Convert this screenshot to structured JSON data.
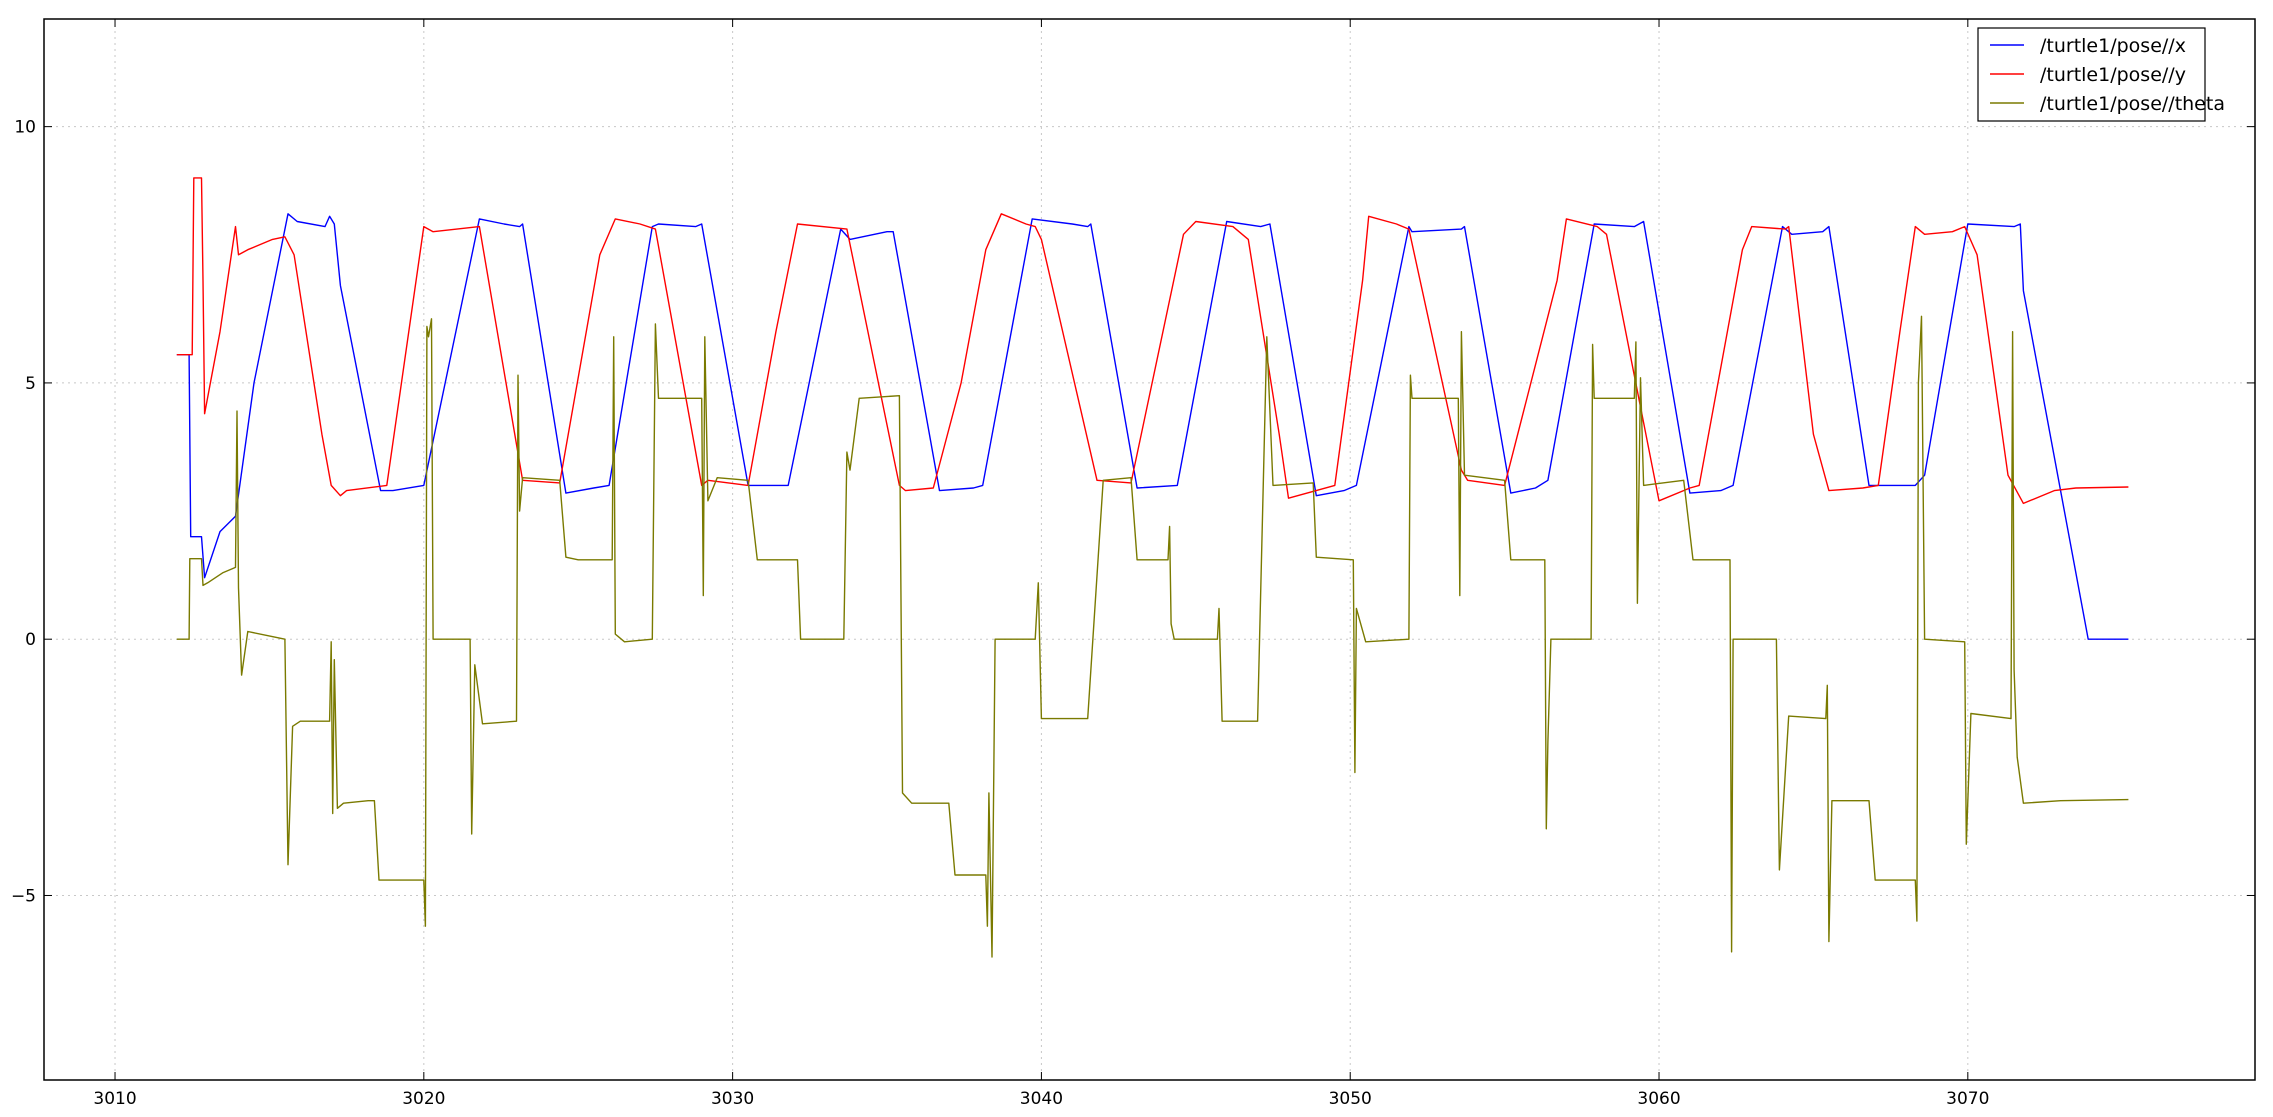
{
  "chart_data": {
    "type": "line",
    "title": "",
    "xlabel": "",
    "ylabel": "",
    "xlim": [
      3007.7,
      3079.3
    ],
    "ylim": [
      -8.6,
      12.1
    ],
    "xticks": [
      3010,
      3020,
      3030,
      3040,
      3050,
      3060,
      3070
    ],
    "yticks": [
      -5,
      0,
      5,
      10
    ],
    "xtick_labels": [
      "3010",
      "3020",
      "3030",
      "3040",
      "3050",
      "3060",
      "3070"
    ],
    "ytick_labels": [
      "−5",
      "0",
      "5",
      "10"
    ],
    "grid": true,
    "legend_position": "top-right",
    "series": [
      {
        "name": "/turtle1/pose//x",
        "color": "#0000ff",
        "points": [
          [
            3012.0,
            5.55
          ],
          [
            3012.4,
            5.55
          ],
          [
            3012.45,
            2.0
          ],
          [
            3012.8,
            2.0
          ],
          [
            3012.9,
            1.2
          ],
          [
            3013.4,
            2.1
          ],
          [
            3013.9,
            2.4
          ],
          [
            3014.5,
            5.0
          ],
          [
            3015.6,
            8.3
          ],
          [
            3015.9,
            8.15
          ],
          [
            3016.8,
            8.05
          ],
          [
            3016.95,
            8.25
          ],
          [
            3017.1,
            8.1
          ],
          [
            3017.3,
            6.9
          ],
          [
            3018.6,
            2.9
          ],
          [
            3019.0,
            2.9
          ],
          [
            3020.0,
            3.0
          ],
          [
            3021.8,
            8.2
          ],
          [
            3022.6,
            8.1
          ],
          [
            3023.1,
            8.05
          ],
          [
            3023.2,
            8.1
          ],
          [
            3024.6,
            2.85
          ],
          [
            3025.5,
            2.95
          ],
          [
            3026.0,
            3.0
          ],
          [
            3027.4,
            8.05
          ],
          [
            3027.6,
            8.1
          ],
          [
            3028.8,
            8.05
          ],
          [
            3029.0,
            8.1
          ],
          [
            3030.5,
            3.0
          ],
          [
            3031.8,
            3.0
          ],
          [
            3033.5,
            8.0
          ],
          [
            3033.8,
            7.8
          ],
          [
            3035.0,
            7.95
          ],
          [
            3035.2,
            7.95
          ],
          [
            3036.7,
            2.9
          ],
          [
            3037.8,
            2.95
          ],
          [
            3038.1,
            3.0
          ],
          [
            3039.7,
            8.2
          ],
          [
            3041.0,
            8.1
          ],
          [
            3041.5,
            8.05
          ],
          [
            3041.6,
            8.1
          ],
          [
            3043.1,
            2.95
          ],
          [
            3044.4,
            3.0
          ],
          [
            3046.0,
            8.15
          ],
          [
            3047.1,
            8.05
          ],
          [
            3047.4,
            8.1
          ],
          [
            3048.9,
            2.8
          ],
          [
            3049.8,
            2.9
          ],
          [
            3050.2,
            3.0
          ],
          [
            3051.9,
            8.05
          ],
          [
            3052.0,
            7.95
          ],
          [
            3053.6,
            8.0
          ],
          [
            3053.7,
            8.05
          ],
          [
            3055.2,
            2.85
          ],
          [
            3056.0,
            2.95
          ],
          [
            3056.4,
            3.1
          ],
          [
            3057.9,
            8.1
          ],
          [
            3059.2,
            8.05
          ],
          [
            3059.5,
            8.15
          ],
          [
            3061.0,
            2.85
          ],
          [
            3062.0,
            2.9
          ],
          [
            3062.4,
            3.0
          ],
          [
            3064.0,
            8.05
          ],
          [
            3064.3,
            7.9
          ],
          [
            3065.3,
            7.95
          ],
          [
            3065.5,
            8.05
          ],
          [
            3066.8,
            3.0
          ],
          [
            3068.3,
            3.0
          ],
          [
            3068.6,
            3.2
          ],
          [
            3070.0,
            8.1
          ],
          [
            3071.5,
            8.05
          ],
          [
            3071.7,
            8.1
          ],
          [
            3071.8,
            6.8
          ],
          [
            3073.9,
            0.0
          ],
          [
            3075.2,
            0.0
          ]
        ]
      },
      {
        "name": "/turtle1/pose//y",
        "color": "#ff0000",
        "points": [
          [
            3012.0,
            5.55
          ],
          [
            3012.5,
            5.55
          ],
          [
            3012.55,
            9.0
          ],
          [
            3012.8,
            9.0
          ],
          [
            3012.85,
            7.0
          ],
          [
            3012.9,
            4.4
          ],
          [
            3013.4,
            6.0
          ],
          [
            3013.9,
            8.05
          ],
          [
            3014.0,
            7.5
          ],
          [
            3014.3,
            7.6
          ],
          [
            3015.1,
            7.8
          ],
          [
            3015.5,
            7.85
          ],
          [
            3015.8,
            7.5
          ],
          [
            3016.7,
            4.0
          ],
          [
            3017.0,
            3.0
          ],
          [
            3017.3,
            2.8
          ],
          [
            3017.5,
            2.9
          ],
          [
            3018.8,
            3.0
          ],
          [
            3020.0,
            8.05
          ],
          [
            3020.3,
            7.95
          ],
          [
            3021.8,
            8.05
          ],
          [
            3023.2,
            3.1
          ],
          [
            3024.4,
            3.05
          ],
          [
            3025.7,
            7.5
          ],
          [
            3026.2,
            8.2
          ],
          [
            3027.0,
            8.1
          ],
          [
            3027.5,
            8.0
          ],
          [
            3029.0,
            3.0
          ],
          [
            3029.2,
            3.1
          ],
          [
            3030.5,
            3.0
          ],
          [
            3031.4,
            6.0
          ],
          [
            3032.1,
            8.1
          ],
          [
            3033.7,
            8.0
          ],
          [
            3035.4,
            3.0
          ],
          [
            3035.6,
            2.9
          ],
          [
            3036.5,
            2.95
          ],
          [
            3037.4,
            5.0
          ],
          [
            3038.2,
            7.6
          ],
          [
            3038.7,
            8.3
          ],
          [
            3039.5,
            8.1
          ],
          [
            3039.8,
            8.05
          ],
          [
            3040.0,
            7.8
          ],
          [
            3041.8,
            3.1
          ],
          [
            3042.9,
            3.05
          ],
          [
            3044.6,
            7.9
          ],
          [
            3045.0,
            8.15
          ],
          [
            3046.2,
            8.05
          ],
          [
            3046.7,
            7.8
          ],
          [
            3047.7,
            4.0
          ],
          [
            3048.0,
            2.75
          ],
          [
            3049.5,
            3.0
          ],
          [
            3050.4,
            7.0
          ],
          [
            3050.6,
            8.25
          ],
          [
            3051.5,
            8.1
          ],
          [
            3051.9,
            8.0
          ],
          [
            3053.6,
            3.3
          ],
          [
            3053.8,
            3.1
          ],
          [
            3055.0,
            3.0
          ],
          [
            3056.7,
            7.0
          ],
          [
            3057.0,
            8.2
          ],
          [
            3058.0,
            8.05
          ],
          [
            3058.3,
            7.9
          ],
          [
            3060.0,
            2.7
          ],
          [
            3061.0,
            2.95
          ],
          [
            3061.3,
            3.0
          ],
          [
            3062.7,
            7.6
          ],
          [
            3063.0,
            8.05
          ],
          [
            3064.1,
            8.0
          ],
          [
            3064.2,
            8.05
          ],
          [
            3065.0,
            4.0
          ],
          [
            3065.5,
            2.9
          ],
          [
            3066.6,
            2.95
          ],
          [
            3067.1,
            3.0
          ],
          [
            3067.8,
            6.0
          ],
          [
            3068.3,
            8.05
          ],
          [
            3068.6,
            7.9
          ],
          [
            3069.5,
            7.95
          ],
          [
            3069.9,
            8.05
          ],
          [
            3070.3,
            7.5
          ],
          [
            3071.3,
            3.2
          ],
          [
            3071.8,
            2.65
          ],
          [
            3072.8,
            2.9
          ],
          [
            3073.5,
            2.95
          ],
          [
            3075.2,
            2.97
          ]
        ]
      },
      {
        "name": "/turtle1/pose//theta",
        "color": "#7a7a00",
        "points": [
          [
            3012.0,
            0.0
          ],
          [
            3012.4,
            0.0
          ],
          [
            3012.42,
            1.57
          ],
          [
            3012.8,
            1.57
          ],
          [
            3012.85,
            1.05
          ],
          [
            3013.0,
            1.1
          ],
          [
            3013.5,
            1.3
          ],
          [
            3013.9,
            1.4
          ],
          [
            3013.95,
            4.45
          ],
          [
            3014.0,
            1.0
          ],
          [
            3014.1,
            -0.7
          ],
          [
            3014.3,
            0.15
          ],
          [
            3015.5,
            0.0
          ],
          [
            3015.6,
            -4.4
          ],
          [
            3015.75,
            -1.7
          ],
          [
            3016.0,
            -1.6
          ],
          [
            3016.95,
            -1.6
          ],
          [
            3017.0,
            -0.05
          ],
          [
            3017.05,
            -3.4
          ],
          [
            3017.1,
            -0.4
          ],
          [
            3017.2,
            -3.3
          ],
          [
            3017.4,
            -3.2
          ],
          [
            3018.2,
            -3.15
          ],
          [
            3018.4,
            -3.15
          ],
          [
            3018.55,
            -4.7
          ],
          [
            3019.0,
            -4.7
          ],
          [
            3020.0,
            -4.7
          ],
          [
            3020.05,
            -5.6
          ],
          [
            3020.1,
            6.1
          ],
          [
            3020.15,
            5.9
          ],
          [
            3020.25,
            6.25
          ],
          [
            3020.3,
            0.0
          ],
          [
            3021.5,
            0.0
          ],
          [
            3021.55,
            -3.8
          ],
          [
            3021.65,
            -0.5
          ],
          [
            3021.9,
            -1.65
          ],
          [
            3023.0,
            -1.6
          ],
          [
            3023.05,
            5.15
          ],
          [
            3023.1,
            2.5
          ],
          [
            3023.2,
            3.15
          ],
          [
            3024.4,
            3.1
          ],
          [
            3024.6,
            1.6
          ],
          [
            3025.0,
            1.55
          ],
          [
            3026.1,
            1.55
          ],
          [
            3026.15,
            5.9
          ],
          [
            3026.2,
            0.1
          ],
          [
            3026.5,
            -0.05
          ],
          [
            3027.4,
            0.0
          ],
          [
            3027.5,
            6.15
          ],
          [
            3027.6,
            4.7
          ],
          [
            3029.0,
            4.7
          ],
          [
            3029.05,
            0.85
          ],
          [
            3029.1,
            5.9
          ],
          [
            3029.2,
            2.7
          ],
          [
            3029.5,
            3.15
          ],
          [
            3030.5,
            3.1
          ],
          [
            3030.8,
            1.55
          ],
          [
            3031.4,
            1.55
          ],
          [
            3032.1,
            1.55
          ],
          [
            3032.2,
            0.0
          ],
          [
            3033.6,
            0.0
          ],
          [
            3033.7,
            3.65
          ],
          [
            3033.8,
            3.3
          ],
          [
            3034.1,
            4.7
          ],
          [
            3035.4,
            4.75
          ],
          [
            3035.5,
            -3.0
          ],
          [
            3035.8,
            -3.2
          ],
          [
            3037.0,
            -3.2
          ],
          [
            3037.2,
            -4.6
          ],
          [
            3038.2,
            -4.6
          ],
          [
            3038.25,
            -5.6
          ],
          [
            3038.3,
            -3.0
          ],
          [
            3038.4,
            -6.2
          ],
          [
            3038.5,
            0.0
          ],
          [
            3039.8,
            0.0
          ],
          [
            3039.9,
            1.1
          ],
          [
            3040.0,
            -1.55
          ],
          [
            3041.5,
            -1.55
          ],
          [
            3042.0,
            3.1
          ],
          [
            3042.9,
            3.15
          ],
          [
            3043.1,
            1.55
          ],
          [
            3044.1,
            1.55
          ],
          [
            3044.15,
            2.2
          ],
          [
            3044.2,
            0.3
          ],
          [
            3044.3,
            0.0
          ],
          [
            3045.7,
            0.0
          ],
          [
            3045.75,
            0.6
          ],
          [
            3045.85,
            -1.6
          ],
          [
            3047.0,
            -1.6
          ],
          [
            3047.3,
            5.9
          ],
          [
            3047.5,
            3.0
          ],
          [
            3048.8,
            3.05
          ],
          [
            3048.9,
            1.6
          ],
          [
            3050.1,
            1.55
          ],
          [
            3050.15,
            -2.6
          ],
          [
            3050.2,
            0.6
          ],
          [
            3050.5,
            -0.05
          ],
          [
            3051.9,
            0.0
          ],
          [
            3051.95,
            5.15
          ],
          [
            3052.0,
            4.7
          ],
          [
            3053.5,
            4.7
          ],
          [
            3053.55,
            0.85
          ],
          [
            3053.6,
            6.0
          ],
          [
            3053.7,
            3.2
          ],
          [
            3055.0,
            3.1
          ],
          [
            3055.2,
            1.55
          ],
          [
            3056.3,
            1.55
          ],
          [
            3056.35,
            -3.7
          ],
          [
            3056.4,
            -2.0
          ],
          [
            3056.5,
            0.0
          ],
          [
            3057.8,
            0.0
          ],
          [
            3057.85,
            5.75
          ],
          [
            3057.9,
            4.7
          ],
          [
            3059.2,
            4.7
          ],
          [
            3059.25,
            5.8
          ],
          [
            3059.3,
            0.7
          ],
          [
            3059.4,
            5.1
          ],
          [
            3059.5,
            3.0
          ],
          [
            3060.8,
            3.1
          ],
          [
            3061.1,
            1.55
          ],
          [
            3062.3,
            1.55
          ],
          [
            3062.35,
            -6.1
          ],
          [
            3062.4,
            0.0
          ],
          [
            3063.8,
            0.0
          ],
          [
            3063.9,
            -4.5
          ],
          [
            3064.2,
            -1.5
          ],
          [
            3065.4,
            -1.55
          ],
          [
            3065.45,
            -0.9
          ],
          [
            3065.5,
            -5.9
          ],
          [
            3065.6,
            -3.15
          ],
          [
            3066.8,
            -3.15
          ],
          [
            3067.0,
            -4.7
          ],
          [
            3068.3,
            -4.7
          ],
          [
            3068.35,
            -5.5
          ],
          [
            3068.4,
            5.0
          ],
          [
            3068.5,
            6.3
          ],
          [
            3068.6,
            0.0
          ],
          [
            3069.9,
            -0.05
          ],
          [
            3069.95,
            -4.0
          ],
          [
            3070.1,
            -1.45
          ],
          [
            3071.4,
            -1.55
          ],
          [
            3071.45,
            6.0
          ],
          [
            3071.5,
            -0.6
          ],
          [
            3071.6,
            -2.3
          ],
          [
            3071.8,
            -3.2
          ],
          [
            3073.0,
            -3.15
          ],
          [
            3075.2,
            -3.13
          ]
        ]
      }
    ]
  }
}
